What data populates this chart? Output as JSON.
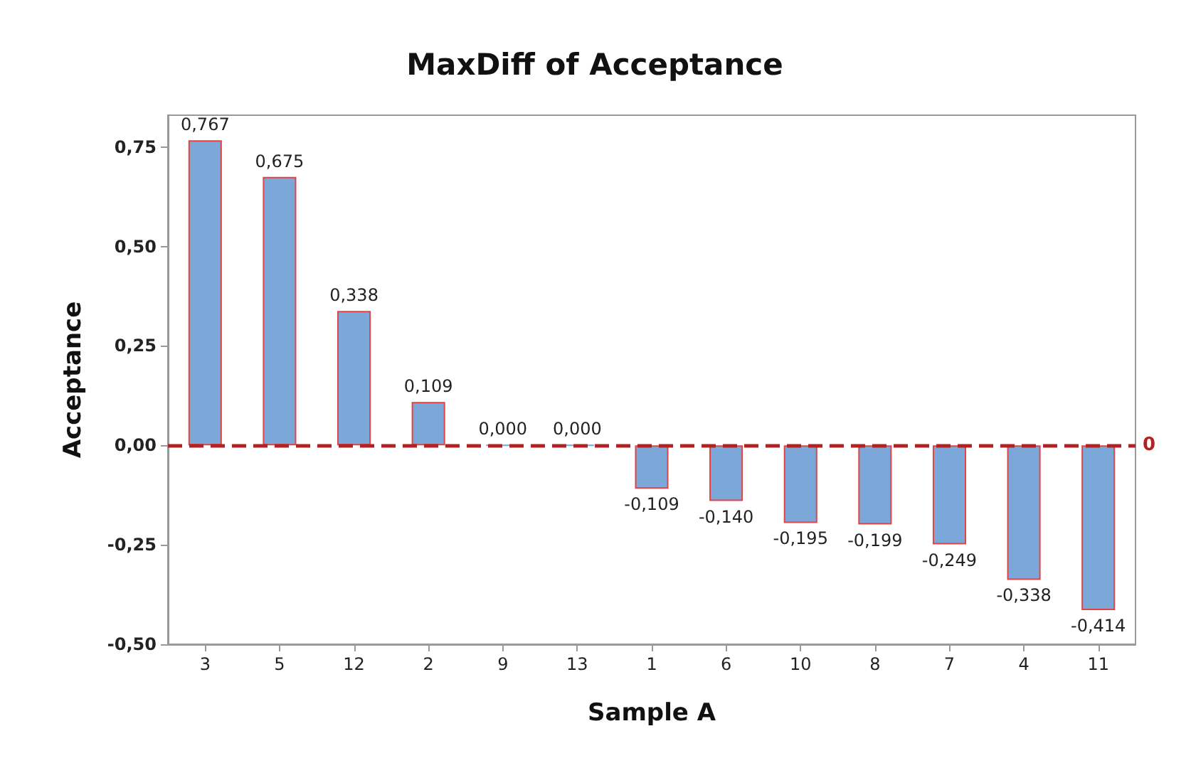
{
  "chart_data": {
    "type": "bar",
    "title": "MaxDiff of Acceptance",
    "xlabel": "Sample A",
    "ylabel": "Acceptance",
    "categories": [
      "3",
      "5",
      "12",
      "2",
      "9",
      "13",
      "1",
      "6",
      "10",
      "8",
      "7",
      "4",
      "11"
    ],
    "values": [
      0.767,
      0.675,
      0.338,
      0.109,
      0,
      0,
      -0.109,
      -0.14,
      -0.195,
      -0.199,
      -0.249,
      -0.338,
      -0.414
    ],
    "value_labels": [
      "0,767",
      "0,675",
      "0,338",
      "0,109",
      "0,000",
      "0,000",
      "-0,109",
      "-0,140",
      "-0,195",
      "-0,199",
      "-0,249",
      "-0,338",
      "-0,414"
    ],
    "color": "#7ba7d9",
    "ylim": [
      -0.5,
      0.83
    ],
    "yticks": [
      {
        "value": -0.5,
        "label": "-0,50"
      },
      {
        "value": -0.25,
        "label": "-0,25"
      },
      {
        "value": 0,
        "label": "0,00"
      },
      {
        "value": 0.25,
        "label": "0,25"
      },
      {
        "value": 0.5,
        "label": "0,50"
      },
      {
        "value": 0.75,
        "label": "0,75"
      }
    ],
    "ref_lines": [
      {
        "axis": "y",
        "value": 0,
        "label": "0",
        "color": "#b22222",
        "line_style": "dashed"
      }
    ],
    "grid": false
  }
}
